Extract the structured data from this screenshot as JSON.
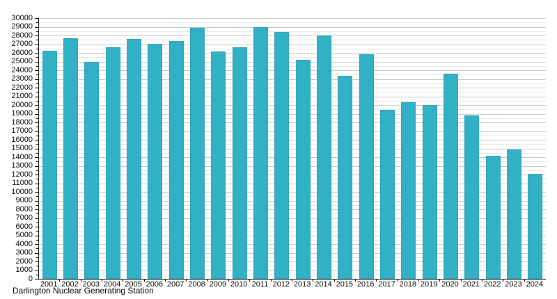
{
  "caption": "Darlington Nuclear Generating Station",
  "colors": {
    "bar_fill": "#32b0c6",
    "bar_border": "#2aa0b8",
    "grid_major": "#c8c8c8",
    "grid_minor": "#e8e8e8",
    "axis": "#000000",
    "text": "#000000",
    "background": "#ffffff"
  },
  "chart_data": {
    "type": "bar",
    "title": "",
    "xlabel": "",
    "ylabel": "",
    "categories": [
      "2001",
      "2002",
      "2003",
      "2004",
      "2005",
      "2006",
      "2007",
      "2008",
      "2009",
      "2010",
      "2011",
      "2012",
      "2013",
      "2014",
      "2015",
      "2016",
      "2017",
      "2018",
      "2019",
      "2020",
      "2021",
      "2022",
      "2023",
      "2024"
    ],
    "values": [
      26250,
      27700,
      24950,
      26650,
      27600,
      27050,
      27350,
      28900,
      26150,
      26650,
      29000,
      28400,
      25200,
      28000,
      23400,
      25850,
      19450,
      20350,
      20000,
      23600,
      18800,
      14150,
      14900,
      12100
    ],
    "ylim": [
      0,
      30000
    ],
    "y_major_tick_step": 1000,
    "y_minor_tick_step": 500,
    "grid": "on",
    "legend": "none",
    "caption": "Darlington Nuclear Generating Station"
  }
}
